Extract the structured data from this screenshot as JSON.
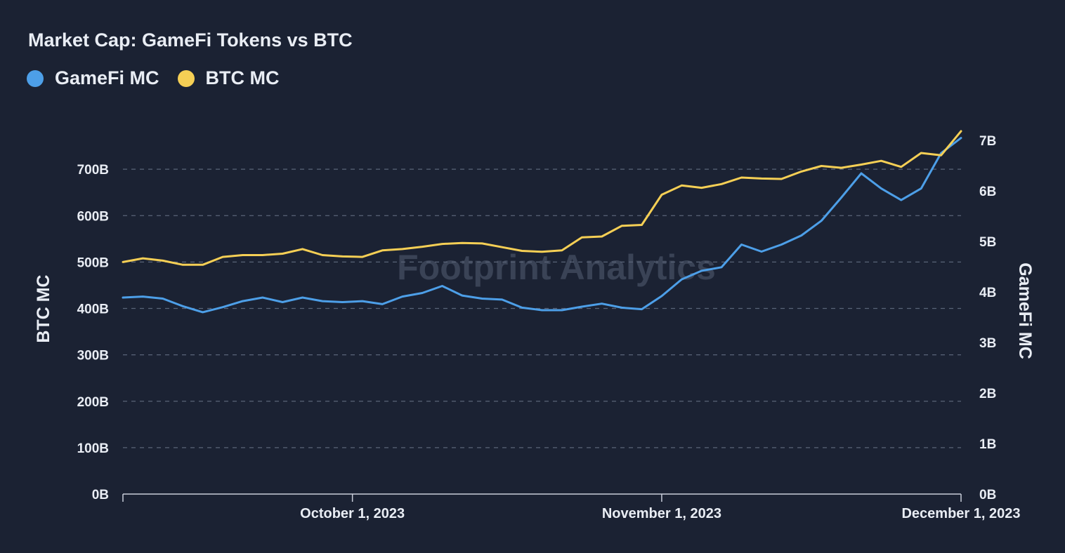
{
  "colors": {
    "background": "#1b2233",
    "gamefi": "#4d9fe8",
    "btc": "#f5cf55",
    "grid": "#5a6478",
    "text": "#e9edf4",
    "watermark": "#3a4356"
  },
  "watermark": "Footprint Analytics",
  "chart_data": {
    "type": "line",
    "title": "Market Cap: GameFi Tokens vs BTC",
    "x_start": "2023-09-08",
    "x_end": "2023-12-01",
    "x_ticks": [
      {
        "date": "2023-10-01",
        "label": "October 1, 2023"
      },
      {
        "date": "2023-11-01",
        "label": "November 1, 2023"
      },
      {
        "date": "2023-12-01",
        "label": "December 1, 2023"
      }
    ],
    "y_left": {
      "label": "BTC MC",
      "range": [
        0,
        800
      ],
      "ticks": [
        {
          "v": 0,
          "label": "0B"
        },
        {
          "v": 100,
          "label": "100B"
        },
        {
          "v": 200,
          "label": "200B"
        },
        {
          "v": 300,
          "label": "300B"
        },
        {
          "v": 400,
          "label": "400B"
        },
        {
          "v": 500,
          "label": "500B"
        },
        {
          "v": 600,
          "label": "600B"
        },
        {
          "v": 700,
          "label": "700B"
        }
      ]
    },
    "y_right": {
      "label": "GameFi MC",
      "range": [
        0,
        7.35
      ],
      "ticks": [
        {
          "v": 0,
          "label": "0B"
        },
        {
          "v": 1,
          "label": "1B"
        },
        {
          "v": 2,
          "label": "2B"
        },
        {
          "v": 3,
          "label": "3B"
        },
        {
          "v": 4,
          "label": "4B"
        },
        {
          "v": 5,
          "label": "5B"
        },
        {
          "v": 6,
          "label": "6B"
        },
        {
          "v": 7,
          "label": "7B"
        }
      ]
    },
    "grid": true,
    "legend_position": "top-left",
    "series": [
      {
        "name": "GameFi MC",
        "axis": "right",
        "color": "#4d9fe8",
        "values": [
          {
            "x": "2023-09-08",
            "y": 3.89
          },
          {
            "x": "2023-09-10",
            "y": 3.91
          },
          {
            "x": "2023-09-12",
            "y": 3.87
          },
          {
            "x": "2023-09-14",
            "y": 3.72
          },
          {
            "x": "2023-09-16",
            "y": 3.6
          },
          {
            "x": "2023-09-18",
            "y": 3.7
          },
          {
            "x": "2023-09-20",
            "y": 3.82
          },
          {
            "x": "2023-09-22",
            "y": 3.89
          },
          {
            "x": "2023-09-24",
            "y": 3.8
          },
          {
            "x": "2023-09-26",
            "y": 3.89
          },
          {
            "x": "2023-09-28",
            "y": 3.82
          },
          {
            "x": "2023-09-30",
            "y": 3.8
          },
          {
            "x": "2023-10-02",
            "y": 3.82
          },
          {
            "x": "2023-10-04",
            "y": 3.76
          },
          {
            "x": "2023-10-06",
            "y": 3.91
          },
          {
            "x": "2023-10-08",
            "y": 3.98
          },
          {
            "x": "2023-10-10",
            "y": 4.12
          },
          {
            "x": "2023-10-12",
            "y": 3.93
          },
          {
            "x": "2023-10-14",
            "y": 3.87
          },
          {
            "x": "2023-10-16",
            "y": 3.85
          },
          {
            "x": "2023-10-18",
            "y": 3.69
          },
          {
            "x": "2023-10-20",
            "y": 3.64
          },
          {
            "x": "2023-10-22",
            "y": 3.64
          },
          {
            "x": "2023-10-24",
            "y": 3.71
          },
          {
            "x": "2023-10-26",
            "y": 3.77
          },
          {
            "x": "2023-10-28",
            "y": 3.69
          },
          {
            "x": "2023-10-30",
            "y": 3.66
          },
          {
            "x": "2023-11-01",
            "y": 3.92
          },
          {
            "x": "2023-11-03",
            "y": 4.25
          },
          {
            "x": "2023-11-05",
            "y": 4.42
          },
          {
            "x": "2023-11-07",
            "y": 4.49
          },
          {
            "x": "2023-11-09",
            "y": 4.94
          },
          {
            "x": "2023-11-11",
            "y": 4.8
          },
          {
            "x": "2023-11-13",
            "y": 4.94
          },
          {
            "x": "2023-11-15",
            "y": 5.12
          },
          {
            "x": "2023-11-17",
            "y": 5.41
          },
          {
            "x": "2023-11-19",
            "y": 5.87
          },
          {
            "x": "2023-11-21",
            "y": 6.35
          },
          {
            "x": "2023-11-23",
            "y": 6.05
          },
          {
            "x": "2023-11-25",
            "y": 5.82
          },
          {
            "x": "2023-11-27",
            "y": 6.05
          },
          {
            "x": "2023-11-29",
            "y": 6.75
          },
          {
            "x": "2023-12-01",
            "y": 7.05
          }
        ]
      },
      {
        "name": "BTC MC",
        "axis": "left",
        "color": "#f5cf55",
        "values": [
          {
            "x": "2023-09-08",
            "y": 500
          },
          {
            "x": "2023-09-10",
            "y": 508
          },
          {
            "x": "2023-09-12",
            "y": 503
          },
          {
            "x": "2023-09-14",
            "y": 494
          },
          {
            "x": "2023-09-16",
            "y": 494
          },
          {
            "x": "2023-09-18",
            "y": 511
          },
          {
            "x": "2023-09-20",
            "y": 515
          },
          {
            "x": "2023-09-22",
            "y": 515
          },
          {
            "x": "2023-09-24",
            "y": 518
          },
          {
            "x": "2023-09-26",
            "y": 528
          },
          {
            "x": "2023-09-28",
            "y": 515
          },
          {
            "x": "2023-09-30",
            "y": 512
          },
          {
            "x": "2023-10-02",
            "y": 511
          },
          {
            "x": "2023-10-04",
            "y": 525
          },
          {
            "x": "2023-10-06",
            "y": 528
          },
          {
            "x": "2023-10-08",
            "y": 533
          },
          {
            "x": "2023-10-10",
            "y": 539
          },
          {
            "x": "2023-10-12",
            "y": 541
          },
          {
            "x": "2023-10-14",
            "y": 540
          },
          {
            "x": "2023-10-16",
            "y": 532
          },
          {
            "x": "2023-10-18",
            "y": 524
          },
          {
            "x": "2023-10-20",
            "y": 522
          },
          {
            "x": "2023-10-22",
            "y": 525
          },
          {
            "x": "2023-10-24",
            "y": 553
          },
          {
            "x": "2023-10-26",
            "y": 555
          },
          {
            "x": "2023-10-28",
            "y": 578
          },
          {
            "x": "2023-10-30",
            "y": 580
          },
          {
            "x": "2023-11-01",
            "y": 645
          },
          {
            "x": "2023-11-03",
            "y": 665
          },
          {
            "x": "2023-11-05",
            "y": 660
          },
          {
            "x": "2023-11-07",
            "y": 668
          },
          {
            "x": "2023-11-09",
            "y": 682
          },
          {
            "x": "2023-11-11",
            "y": 680
          },
          {
            "x": "2023-11-13",
            "y": 679
          },
          {
            "x": "2023-11-15",
            "y": 695
          },
          {
            "x": "2023-11-17",
            "y": 707
          },
          {
            "x": "2023-11-19",
            "y": 703
          },
          {
            "x": "2023-11-21",
            "y": 710
          },
          {
            "x": "2023-11-23",
            "y": 718
          },
          {
            "x": "2023-11-25",
            "y": 705
          },
          {
            "x": "2023-11-27",
            "y": 735
          },
          {
            "x": "2023-11-29",
            "y": 730
          },
          {
            "x": "2023-12-01",
            "y": 782
          }
        ]
      }
    ]
  }
}
